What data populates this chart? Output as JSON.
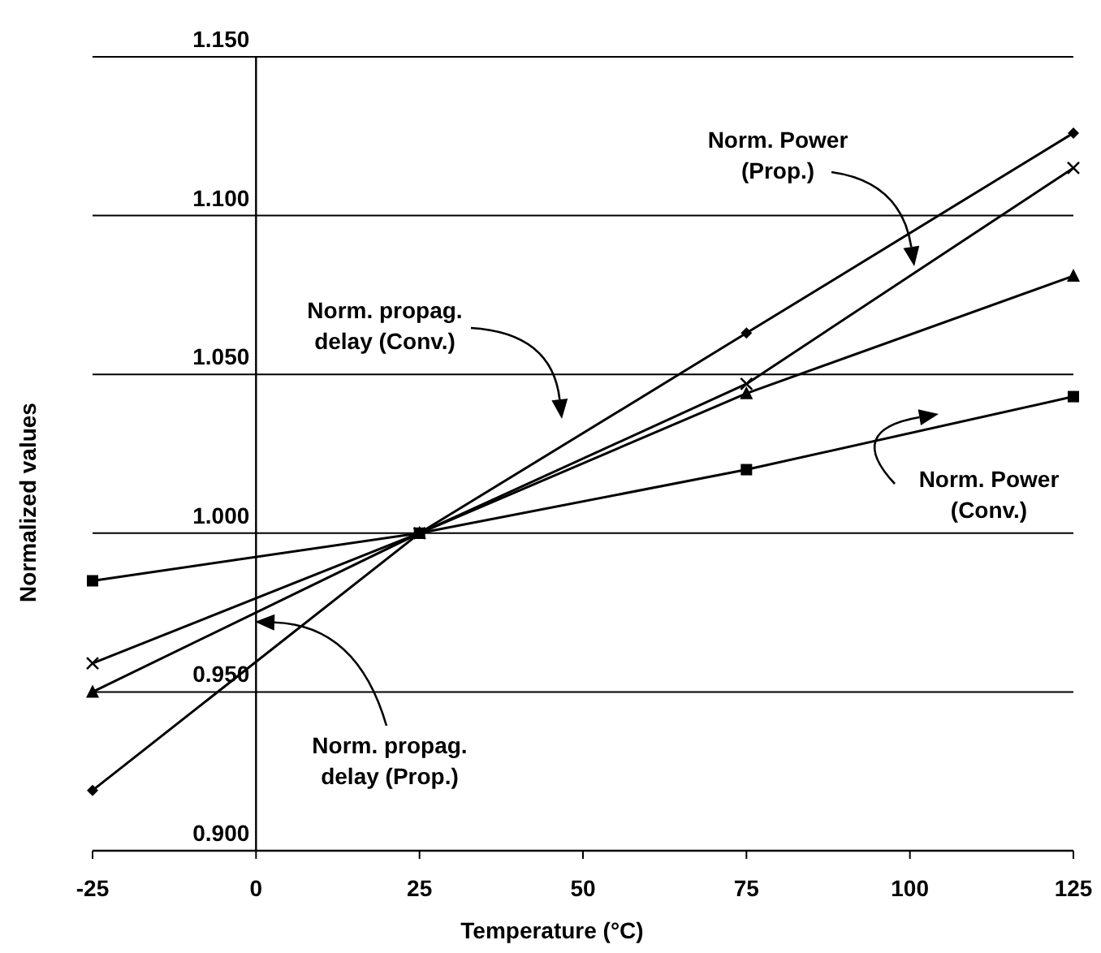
{
  "chart_data": {
    "type": "line",
    "xlabel": "Temperature (°C)",
    "ylabel": "Normalized values",
    "x": [
      -25,
      25,
      75,
      125
    ],
    "xlim": [
      -25,
      125
    ],
    "xticks": [
      -25,
      0,
      25,
      50,
      75,
      100,
      125
    ],
    "ylim": [
      0.9,
      1.15
    ],
    "yticks": [
      {
        "value": 0.9,
        "label": "0.900"
      },
      {
        "value": 0.95,
        "label": "0.950"
      },
      {
        "value": 1.0,
        "label": "1.000"
      },
      {
        "value": 1.05,
        "label": "1.050"
      },
      {
        "value": 1.1,
        "label": "1.100"
      },
      {
        "value": 1.15,
        "label": "1.150"
      }
    ],
    "grid": "y",
    "line_style": "solid",
    "series": [
      {
        "color": "#000000",
        "marker": "diamond",
        "values": [
          0.919,
          1.0,
          1.063,
          1.126
        ]
      },
      {
        "color": "#000000",
        "marker": "cross",
        "values": [
          0.959,
          1.0,
          1.047,
          1.115
        ]
      },
      {
        "color": "#000000",
        "marker": "triangle",
        "values": [
          0.95,
          1.0,
          1.044,
          1.081
        ]
      },
      {
        "color": "#000000",
        "marker": "square",
        "values": [
          0.985,
          1.0,
          1.02,
          1.043
        ]
      }
    ],
    "annotations": [
      "Norm. Power (Prop.)",
      "Norm. propag. delay (Conv.)",
      "Norm. Power (Conv.)",
      "Norm. propag. delay (Prop.)"
    ]
  }
}
